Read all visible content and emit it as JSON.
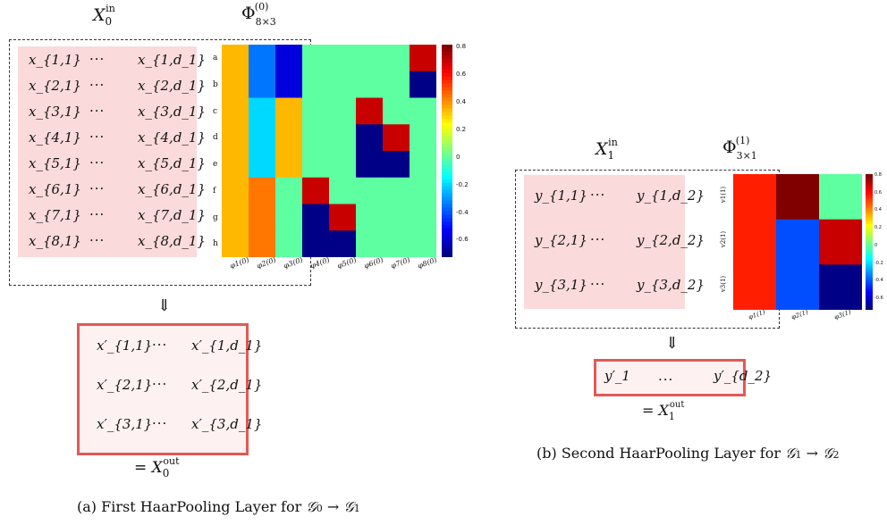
{
  "panel_a": {
    "x_in_title": "X_0^in",
    "phi_title": "Φ^(0)_{8×3}",
    "input_rows": [
      [
        "x_{1,1}",
        "···",
        "x_{1,d_1}"
      ],
      [
        "x_{2,1}",
        "···",
        "x_{2,d_1}"
      ],
      [
        "x_{3,1}",
        "···",
        "x_{3,d_1}"
      ],
      [
        "x_{4,1}",
        "···",
        "x_{4,d_1}"
      ],
      [
        "x_{5,1}",
        "···",
        "x_{5,d_1}"
      ],
      [
        "x_{6,1}",
        "···",
        "x_{6,d_1}"
      ],
      [
        "x_{7,1}",
        "···",
        "x_{7,d_1}"
      ],
      [
        "x_{8,1}",
        "···",
        "x_{8,d_1}"
      ]
    ],
    "heatmap_rows": [
      "a",
      "b",
      "c",
      "d",
      "e",
      "f",
      "g",
      "h"
    ],
    "heatmap_cols": [
      "φ1(0)",
      "φ2(0)",
      "φ3(0)",
      "φ4(0)",
      "φ5(0)",
      "φ6(0)",
      "φ7(0)",
      "φ8(0)"
    ],
    "heatmap_values": [
      [
        0.35,
        -0.35,
        -0.58,
        0,
        0,
        0,
        0,
        0.71
      ],
      [
        0.35,
        -0.35,
        -0.58,
        0,
        0,
        0,
        0,
        -0.71
      ],
      [
        0.35,
        -0.2,
        0.35,
        0,
        0,
        0.71,
        0,
        0
      ],
      [
        0.35,
        -0.2,
        0.35,
        0,
        0,
        -0.71,
        0.71,
        0
      ],
      [
        0.35,
        -0.2,
        0.35,
        0,
        0,
        -0.71,
        -0.71,
        0
      ],
      [
        0.35,
        0.45,
        0,
        0.71,
        0,
        0,
        0,
        0
      ],
      [
        0.35,
        0.45,
        0,
        -0.71,
        0.71,
        0,
        0,
        0
      ],
      [
        0.35,
        0.45,
        0,
        -0.71,
        -0.71,
        0,
        0,
        0
      ]
    ],
    "colorbar_ticks": [
      "0.8",
      "0.6",
      "0.4",
      "0.2",
      "0",
      "-0.2",
      "-0.4",
      "-0.6"
    ],
    "output_rows": [
      [
        "x′_{1,1}",
        "···",
        "x′_{1,d_1}"
      ],
      [
        "x′_{2,1}",
        "···",
        "x′_{2,d_1}"
      ],
      [
        "x′_{3,1}",
        "···",
        "x′_{3,d_1}"
      ]
    ],
    "arrow": "⇓",
    "out_label": "= X_0^out",
    "caption": "(a) First HaarPooling Layer for 𝒢₀ → 𝒢₁"
  },
  "panel_b": {
    "x_in_title": "X_1^in",
    "phi_title": "Φ^(1)_{3×1}",
    "input_rows": [
      [
        "y_{1,1}",
        "···",
        "y_{1,d_2}"
      ],
      [
        "y_{2,1}",
        "···",
        "y_{2,d_2}"
      ],
      [
        "y_{3,1}",
        "···",
        "y_{3,d_2}"
      ]
    ],
    "heatmap_rows": [
      "v1(1)",
      "v2(1)",
      "v3(1)"
    ],
    "heatmap_cols": [
      "φ1(1)",
      "φ2(1)",
      "φ3(1)"
    ],
    "heatmap_values": [
      [
        0.58,
        0.82,
        0
      ],
      [
        0.58,
        -0.41,
        0.71
      ],
      [
        0.58,
        -0.41,
        -0.71
      ]
    ],
    "colorbar_ticks": [
      "0.8",
      "0.6",
      "0.4",
      "0.2",
      "0",
      "-0.2",
      "-0.4",
      "-0.6"
    ],
    "output_row": [
      "y′_1",
      "...",
      "y′_{d_2}"
    ],
    "arrow": "⇓",
    "out_label": "= X_1^out",
    "caption": "(b) Second HaarPooling Layer for 𝒢₁ → 𝒢₂"
  }
}
